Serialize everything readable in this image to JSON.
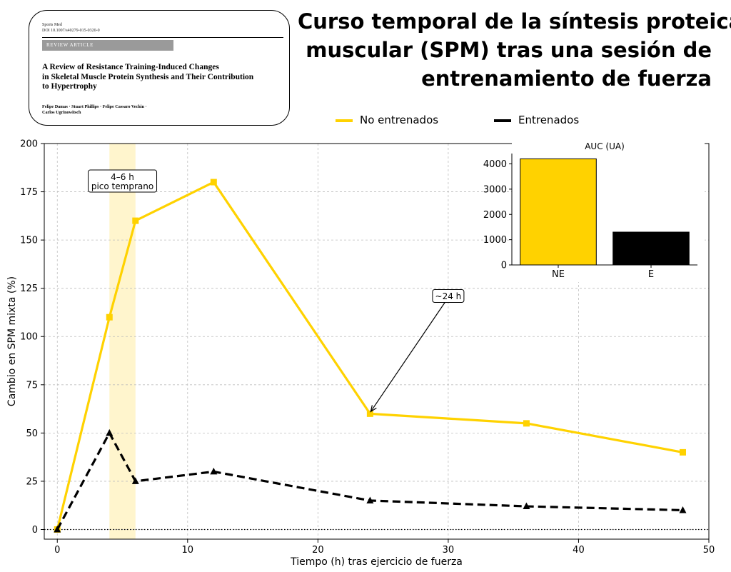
{
  "paper": {
    "journal": "Sports Med",
    "doi": "DOI 10.1007/s40279-015-0320-0",
    "article_type": "REVIEW ARTICLE",
    "title_lines": [
      "A Review of Resistance Training-Induced Changes",
      "in Skeletal Muscle Protein Synthesis and Their Contribution",
      "to Hypertrophy"
    ],
    "author_lines": [
      "Felipe Damas · Stuart Phillips · Felipe Cassaro Vechin ·",
      "Carlos Ugrinowitsch"
    ]
  },
  "title_lines": [
    "Curso temporal de la síntesis proteica",
    "muscular (SPM) tras una sesión de",
    "entrenamiento de fuerza"
  ],
  "colors": {
    "untrained": "#FFD200",
    "trained": "#000000",
    "highlight": "#FFF4C8",
    "grid": "#bdbdbd"
  },
  "chart_data": [
    {
      "type": "line",
      "xlabel": "Tiempo (h) tras ejercicio de fuerza",
      "ylabel": "Cambio en SPM mixta (%)",
      "xlim": [
        -1,
        50
      ],
      "ylim": [
        -5,
        200
      ],
      "xticks": [
        0,
        10,
        20,
        30,
        40,
        50
      ],
      "yticks": [
        0,
        25,
        50,
        75,
        100,
        125,
        150,
        175,
        200
      ],
      "grid": true,
      "zero_line": 0,
      "legend_position": "top-center",
      "highlight_band": {
        "x_from": 4,
        "x_to": 6
      },
      "series": [
        {
          "name": "No entrenados",
          "marker": "square",
          "line_style": "solid",
          "color": "#FFD200",
          "x": [
            0,
            4,
            6,
            12,
            24,
            36,
            48
          ],
          "y": [
            0,
            110,
            160,
            180,
            60,
            55,
            40
          ]
        },
        {
          "name": "Entrenados",
          "marker": "triangle",
          "line_style": "dashed",
          "color": "#000000",
          "x": [
            0,
            4,
            6,
            12,
            24,
            36,
            48
          ],
          "y": [
            0,
            50,
            25,
            30,
            15,
            12,
            10
          ]
        }
      ],
      "annotations": [
        {
          "lines": [
            "4–6 h",
            "pico temprano"
          ],
          "x": 5,
          "y": 180
        },
        {
          "lines": [
            "~24 h"
          ],
          "x": 30,
          "y": 121,
          "arrow_to": {
            "x": 24,
            "y": 60
          }
        }
      ]
    },
    {
      "type": "bar",
      "title": "AUC (UA)",
      "categories": [
        "NE",
        "E"
      ],
      "values": [
        4200,
        1300
      ],
      "colors": [
        "#FFD200",
        "#000000"
      ],
      "ylim": [
        0,
        4410
      ],
      "yticks": [
        0,
        1000,
        2000,
        3000,
        4000
      ]
    }
  ]
}
